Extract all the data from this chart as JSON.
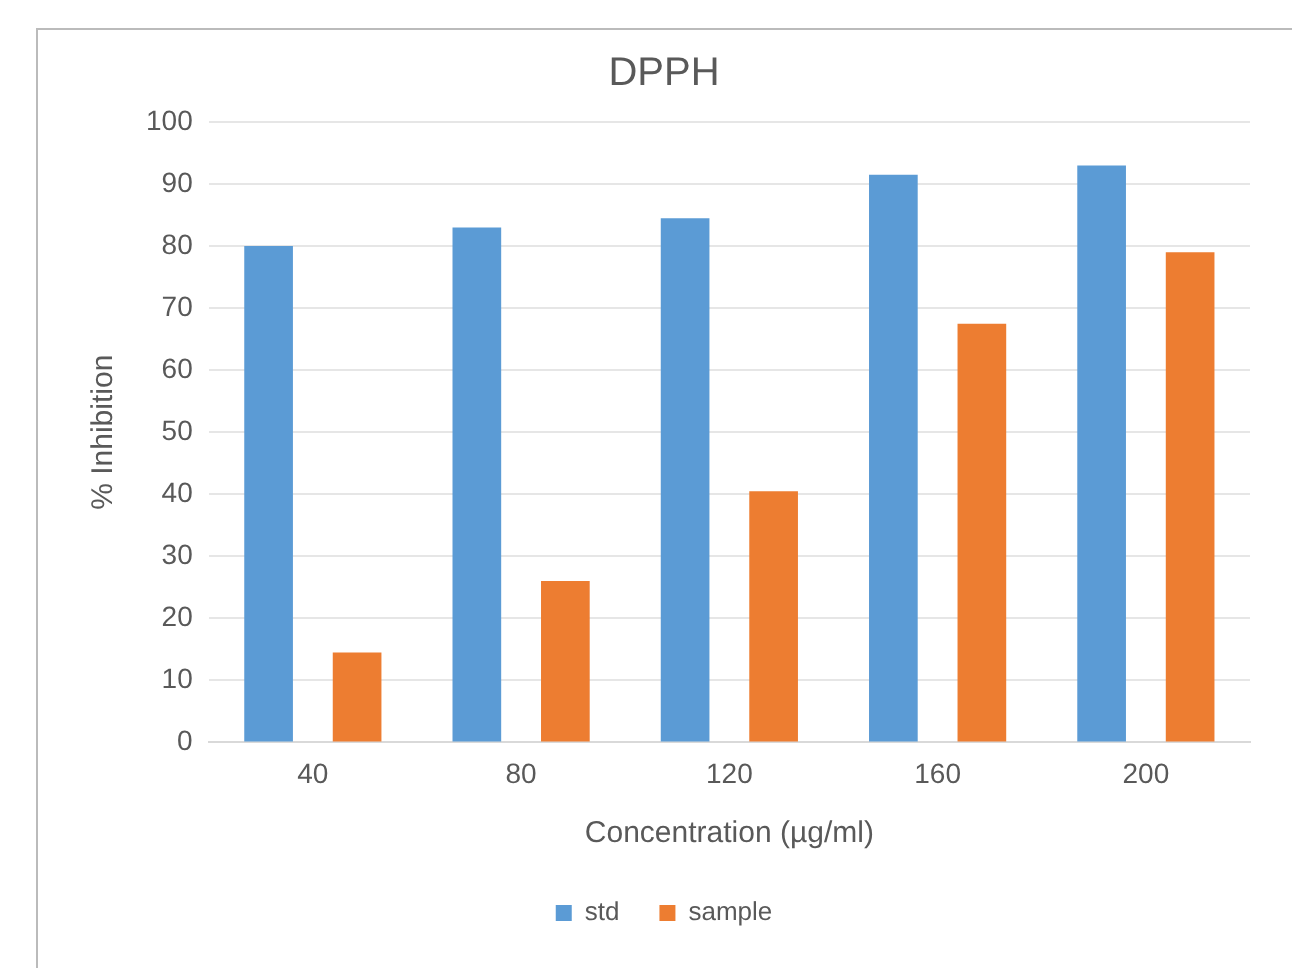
{
  "chart_data": {
    "type": "bar",
    "title": "DPPH",
    "xlabel": "Concentration (µg/ml)",
    "ylabel": "% Inhibition",
    "categories": [
      "40",
      "80",
      "120",
      "160",
      "200"
    ],
    "series": [
      {
        "name": "std",
        "color": "#5b9bd5",
        "values": [
          80,
          83,
          84.5,
          91.5,
          93
        ]
      },
      {
        "name": "sample",
        "color": "#ed7d31",
        "values": [
          14.5,
          26,
          40.5,
          67.5,
          79
        ]
      }
    ],
    "ylim": [
      0,
      100
    ],
    "yticks": [
      0,
      10,
      20,
      30,
      40,
      50,
      60,
      70,
      80,
      90,
      100
    ],
    "grid": "y",
    "legend": "bottom"
  }
}
